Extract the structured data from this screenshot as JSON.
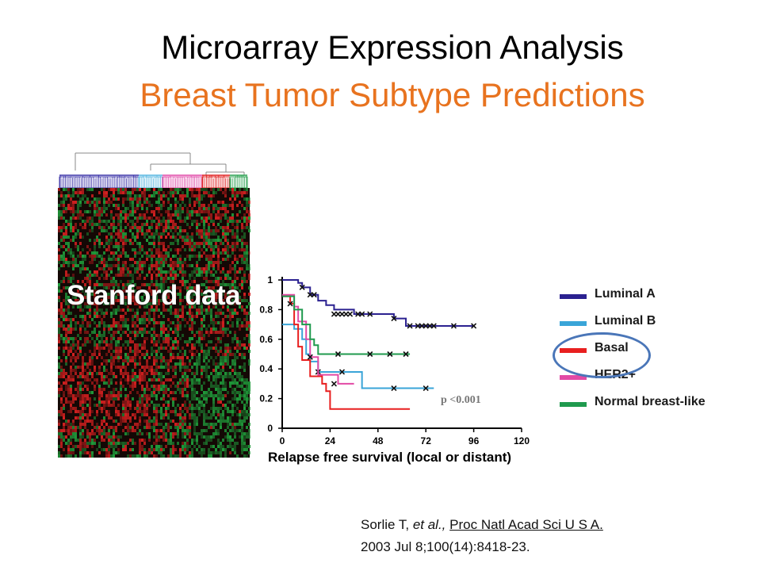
{
  "slide": {
    "title": "Microarray Expression Analysis",
    "subtitle": "Breast Tumor Subtype Predictions",
    "heatmap_label": "Stanford data",
    "citation": {
      "authors": "Sorlie T, ",
      "etal": "et al.,",
      "journal": "Proc Natl Acad Sci U S A.",
      "line2": "2003 Jul 8;100(14):8418-23."
    },
    "colors": {
      "title": "#000000",
      "subtitle": "#e8731f",
      "highlight_ring": "#4a76b8",
      "heatmap_red": "#d42020",
      "heatmap_green": "#1f9a3a"
    }
  },
  "chart_data": {
    "type": "line",
    "xlabel": "Relapse free survival (local or distant)",
    "ylabel": "",
    "xlim": [
      0,
      120
    ],
    "ylim": [
      0,
      1
    ],
    "xticks": [
      "0",
      "24",
      "48",
      "72",
      "96",
      "120"
    ],
    "yticks": [
      "0",
      "0.2",
      "0.4",
      "0.6",
      "0.8",
      "1"
    ],
    "annotation": "p <0.001",
    "legend_position": "right",
    "series": [
      {
        "name": "Luminal A",
        "color": "#2b2190",
        "steps": [
          [
            0,
            1.0
          ],
          [
            8,
            0.98
          ],
          [
            10,
            0.95
          ],
          [
            14,
            0.9
          ],
          [
            18,
            0.86
          ],
          [
            22,
            0.83
          ],
          [
            26,
            0.8
          ],
          [
            36,
            0.77
          ],
          [
            56,
            0.74
          ],
          [
            62,
            0.69
          ],
          [
            96,
            0.69
          ]
        ],
        "censored": [
          [
            10,
            0.95
          ],
          [
            14,
            0.9
          ],
          [
            16,
            0.9
          ],
          [
            26,
            0.77
          ],
          [
            28,
            0.77
          ],
          [
            30,
            0.77
          ],
          [
            32,
            0.77
          ],
          [
            34,
            0.77
          ],
          [
            38,
            0.77
          ],
          [
            40,
            0.77
          ],
          [
            44,
            0.77
          ],
          [
            56,
            0.74
          ],
          [
            64,
            0.69
          ],
          [
            68,
            0.69
          ],
          [
            70,
            0.69
          ],
          [
            72,
            0.69
          ],
          [
            74,
            0.69
          ],
          [
            76,
            0.69
          ],
          [
            86,
            0.69
          ],
          [
            96,
            0.69
          ]
        ]
      },
      {
        "name": "Luminal B",
        "color": "#3aa5d8",
        "steps": [
          [
            0,
            0.7
          ],
          [
            6,
            0.67
          ],
          [
            10,
            0.6
          ],
          [
            12,
            0.5
          ],
          [
            14,
            0.45
          ],
          [
            18,
            0.38
          ],
          [
            40,
            0.27
          ],
          [
            76,
            0.27
          ]
        ],
        "censored": [
          [
            18,
            0.38
          ],
          [
            30,
            0.38
          ],
          [
            56,
            0.27
          ],
          [
            72,
            0.27
          ]
        ]
      },
      {
        "name": "Basal",
        "color": "#e81f1f",
        "steps": [
          [
            0,
            0.89
          ],
          [
            4,
            0.84
          ],
          [
            6,
            0.7
          ],
          [
            8,
            0.55
          ],
          [
            10,
            0.46
          ],
          [
            14,
            0.35
          ],
          [
            20,
            0.3
          ],
          [
            22,
            0.25
          ],
          [
            24,
            0.13
          ],
          [
            64,
            0.13
          ]
        ],
        "censored": [
          [
            4,
            0.84
          ]
        ]
      },
      {
        "name": "HER2+",
        "color": "#e24aa5",
        "steps": [
          [
            0,
            0.9
          ],
          [
            6,
            0.82
          ],
          [
            8,
            0.72
          ],
          [
            12,
            0.6
          ],
          [
            14,
            0.48
          ],
          [
            18,
            0.36
          ],
          [
            28,
            0.3
          ],
          [
            36,
            0.3
          ]
        ],
        "censored": [
          [
            14,
            0.48
          ],
          [
            26,
            0.3
          ]
        ]
      },
      {
        "name": "Normal breast-like",
        "color": "#1f9a4e",
        "steps": [
          [
            0,
            0.89
          ],
          [
            6,
            0.8
          ],
          [
            10,
            0.7
          ],
          [
            14,
            0.6
          ],
          [
            16,
            0.56
          ],
          [
            18,
            0.5
          ],
          [
            64,
            0.5
          ]
        ],
        "censored": [
          [
            28,
            0.5
          ],
          [
            44,
            0.5
          ],
          [
            54,
            0.5
          ],
          [
            62,
            0.5
          ]
        ]
      }
    ]
  }
}
